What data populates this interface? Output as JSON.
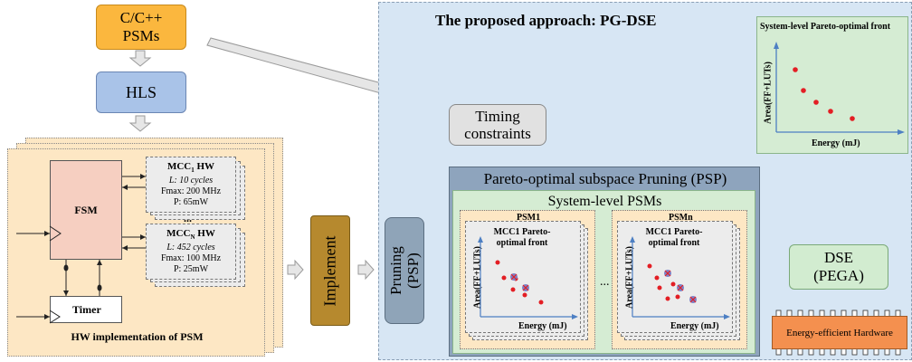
{
  "colors": {
    "source_box": "#fbb73e",
    "hls_box": "#a9c3e8",
    "approach_bg": "#d7e6f4",
    "psm_panel": "#fde7c4",
    "implement_box": "#b6892e",
    "pruning_box": "#8fa4b8",
    "psp_box": "#8ea4bd",
    "system_panel": "#d5ecd3",
    "dse_box": "#d2ecd0",
    "hardware_chip": "#f4904f",
    "point_red": "#e31e24",
    "point_blue": "#7d83c8",
    "arrow_fill": "#e6e6e6",
    "axis_blue": "#4d7fc3"
  },
  "source": {
    "line1": "C/C++",
    "line2": "PSMs"
  },
  "hls": {
    "label": "HLS"
  },
  "hw_impl": {
    "caption": "HW implementation of PSM",
    "fsm": "FSM",
    "timer": "Timer",
    "ellipsis": "...",
    "mcc1": {
      "title": "MCC",
      "sub": "1",
      "suffix": " HW",
      "latency": "L: 10 cycles",
      "fmax": "Fmax: 200 MHz",
      "power": "P: 65mW"
    },
    "mccn": {
      "title": "MCC",
      "sub": "N",
      "suffix": " HW",
      "latency": "L: 452 cycles",
      "fmax": "Fmax: 100 MHz",
      "power": "P: 25mW"
    }
  },
  "implement": {
    "label": "Implement"
  },
  "approach": {
    "title": "The proposed approach: PG-DSE"
  },
  "timing": {
    "line1": "Timing",
    "line2": "constraints"
  },
  "pruning": {
    "line1": "Pruning",
    "line2": "(PSP)"
  },
  "psp": {
    "title": "Pareto-optimal subspace Pruning (PSP)"
  },
  "system_psms": {
    "title": "System-level PSMs"
  },
  "psm1": {
    "label": "PSM1",
    "chart_title": "MCC1 Pareto-optimal front",
    "xlabel": "Energy (mJ)",
    "ylabel": "Area(FF+LUTs)"
  },
  "psmn": {
    "label": "PSMn",
    "chart_title": "MCC1 Pareto-optimal front",
    "xlabel": "Energy (mJ)",
    "ylabel": "Area(FF+LUTs)"
  },
  "mid_ellipsis": "...",
  "dse": {
    "line1": "DSE",
    "line2": "(PEGA)"
  },
  "hardware": {
    "label": "Energy-efficient Hardware"
  },
  "system_front": {
    "title": "System-level Pareto-optimal front",
    "xlabel": "Energy (mJ)",
    "ylabel": "Area(FF+LUTs)"
  }
}
